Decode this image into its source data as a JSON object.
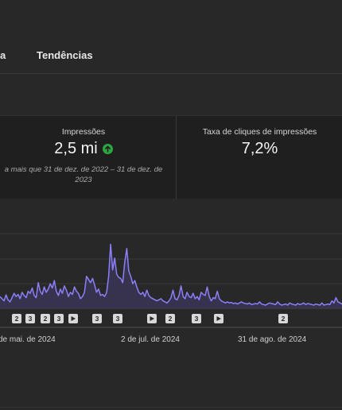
{
  "tabs": {
    "partial_label": "ita",
    "trends_label": "Tendências"
  },
  "metrics": {
    "impressions": {
      "label": "Impressões",
      "value": "2,5 mi",
      "trend": "up",
      "note": "a mais que 31 de dez. de 2022 – 31 de dez. de 2023"
    },
    "ctr": {
      "label": "Taxa de cliques de impressões",
      "value": "7,2%"
    }
  },
  "colors": {
    "line": "#8b80f9",
    "area": "#3a3556",
    "up": "#2ba640",
    "grid": "#3a3a3a"
  },
  "markers": [
    {
      "kind": "number",
      "label": "2"
    },
    {
      "kind": "number",
      "label": "3"
    },
    {
      "kind": "number",
      "label": "2"
    },
    {
      "kind": "number",
      "label": "3"
    },
    {
      "kind": "play-icon",
      "label": ""
    },
    {
      "kind": "number",
      "label": "3"
    },
    {
      "kind": "number",
      "label": "3"
    },
    {
      "kind": "play-icon",
      "label": ""
    },
    {
      "kind": "number",
      "label": "2"
    },
    {
      "kind": "number",
      "label": "3"
    },
    {
      "kind": "play-icon",
      "label": ""
    },
    {
      "kind": "number",
      "label": "2"
    }
  ],
  "chart_data": {
    "type": "area",
    "x_tick_labels": [
      "de mai. de 2024",
      "2 de jul. de 2024",
      "31 de ago. de 2024"
    ],
    "series": [
      {
        "values": [
          22,
          18,
          14,
          25,
          16,
          12,
          20,
          28,
          22,
          26,
          18,
          30,
          24,
          20,
          32,
          28,
          38,
          24,
          20,
          48,
          32,
          26,
          40,
          30,
          36,
          46,
          38,
          52,
          32,
          24,
          36,
          28,
          42,
          34,
          22,
          30,
          26,
          40,
          32,
          28,
          18,
          22,
          30,
          60,
          54,
          48,
          56,
          44,
          30,
          36,
          24,
          26,
          22,
          30,
          60,
          120,
          72,
          94,
          64,
          58,
          56,
          48,
          86,
          112,
          70,
          60,
          46,
          52,
          40,
          30,
          26,
          30,
          22,
          34,
          24,
          20,
          18,
          16,
          14,
          16,
          18,
          14,
          12,
          10,
          14,
          20,
          34,
          18,
          16,
          24,
          42,
          22,
          18,
          30,
          22,
          20,
          28,
          18,
          22,
          16,
          30,
          26,
          24,
          40,
          22,
          14,
          20,
          18,
          32,
          18,
          14,
          12,
          10,
          12,
          10,
          11,
          9,
          10,
          8,
          10,
          12,
          10,
          9,
          8,
          10,
          7,
          8,
          9,
          8,
          12,
          8,
          7,
          6,
          8,
          10,
          9,
          8,
          7,
          12,
          8,
          6,
          7,
          8,
          6,
          10,
          8,
          7,
          6,
          9,
          7,
          8,
          10,
          7,
          9,
          8,
          7,
          6,
          8,
          7,
          6,
          10,
          6,
          7,
          8,
          7,
          14,
          10,
          20,
          12,
          10,
          8
        ]
      }
    ],
    "ylim": [
      0,
      140
    ],
    "grid": true
  }
}
